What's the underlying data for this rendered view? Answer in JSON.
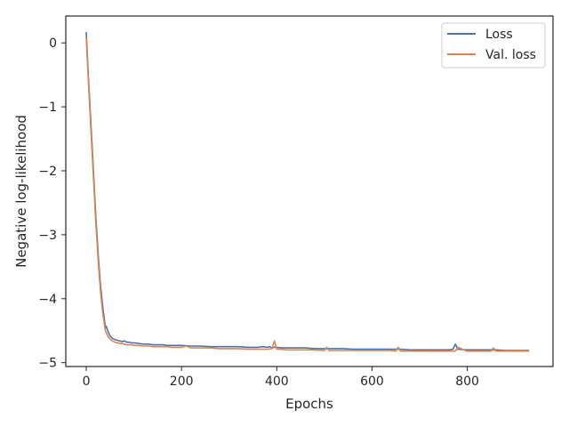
{
  "chart_data": {
    "type": "line",
    "title": "",
    "xlabel": "Epochs",
    "ylabel": "Negative log-likelihood",
    "xlim": [
      -43,
      980
    ],
    "ylim": [
      -5.06,
      0.42
    ],
    "xticks": [
      0,
      200,
      400,
      600,
      800
    ],
    "xtick_labels": [
      "0",
      "200",
      "400",
      "600",
      "800"
    ],
    "yticks": [
      0,
      -1,
      -2,
      -3,
      -4,
      -5
    ],
    "ytick_labels": [
      "0",
      "−1",
      "−2",
      "−3",
      "−4",
      "−5"
    ],
    "grid": false,
    "legend": {
      "position": "top-right"
    },
    "series": [
      {
        "name": "Loss",
        "color": "#4c72b0",
        "x": [
          0,
          5,
          10,
          15,
          20,
          25,
          30,
          35,
          40,
          42,
          45,
          50,
          55,
          60,
          65,
          70,
          75,
          80,
          85,
          90,
          95,
          100,
          110,
          120,
          130,
          140,
          150,
          160,
          170,
          180,
          190,
          200,
          220,
          240,
          260,
          280,
          300,
          320,
          340,
          360,
          370,
          380,
          385,
          390,
          395,
          400,
          410,
          420,
          440,
          460,
          480,
          500,
          520,
          540,
          560,
          580,
          600,
          620,
          640,
          660,
          680,
          700,
          720,
          740,
          760,
          770,
          775,
          780,
          800,
          820,
          840,
          860,
          880,
          900,
          920,
          930
        ],
        "y": [
          0.17,
          -0.6,
          -1.3,
          -2.0,
          -2.7,
          -3.3,
          -3.8,
          -4.15,
          -4.45,
          -4.43,
          -4.5,
          -4.58,
          -4.62,
          -4.64,
          -4.65,
          -4.66,
          -4.67,
          -4.66,
          -4.68,
          -4.68,
          -4.69,
          -4.69,
          -4.7,
          -4.71,
          -4.71,
          -4.72,
          -4.72,
          -4.72,
          -4.73,
          -4.73,
          -4.73,
          -4.73,
          -4.74,
          -4.74,
          -4.75,
          -4.75,
          -4.75,
          -4.75,
          -4.76,
          -4.76,
          -4.75,
          -4.76,
          -4.75,
          -4.77,
          -4.76,
          -4.76,
          -4.77,
          -4.77,
          -4.77,
          -4.77,
          -4.78,
          -4.78,
          -4.78,
          -4.78,
          -4.79,
          -4.79,
          -4.79,
          -4.79,
          -4.79,
          -4.79,
          -4.8,
          -4.8,
          -4.8,
          -4.8,
          -4.8,
          -4.79,
          -4.71,
          -4.79,
          -4.8,
          -4.8,
          -4.8,
          -4.8,
          -4.81,
          -4.81,
          -4.81,
          -4.81
        ]
      },
      {
        "name": "Val. loss",
        "color": "#dd8452",
        "x": [
          0,
          5,
          10,
          15,
          20,
          25,
          30,
          35,
          40,
          45,
          50,
          55,
          60,
          65,
          70,
          75,
          80,
          85,
          90,
          95,
          100,
          110,
          120,
          130,
          140,
          150,
          160,
          170,
          180,
          190,
          200,
          210,
          220,
          240,
          260,
          280,
          300,
          320,
          340,
          360,
          380,
          390,
          395,
          400,
          410,
          420,
          440,
          460,
          480,
          500,
          505,
          510,
          520,
          540,
          560,
          580,
          600,
          620,
          640,
          650,
          655,
          660,
          680,
          700,
          720,
          740,
          760,
          775,
          780,
          800,
          820,
          840,
          850,
          855,
          860,
          880,
          900,
          920,
          930
        ],
        "y": [
          0.08,
          -0.68,
          -1.4,
          -2.1,
          -2.8,
          -3.4,
          -3.9,
          -4.25,
          -4.5,
          -4.58,
          -4.63,
          -4.66,
          -4.68,
          -4.69,
          -4.7,
          -4.7,
          -4.71,
          -4.72,
          -4.72,
          -4.72,
          -4.73,
          -4.73,
          -4.74,
          -4.74,
          -4.75,
          -4.75,
          -4.75,
          -4.75,
          -4.76,
          -4.76,
          -4.76,
          -4.74,
          -4.77,
          -4.77,
          -4.77,
          -4.78,
          -4.78,
          -4.78,
          -4.79,
          -4.79,
          -4.79,
          -4.78,
          -4.66,
          -4.79,
          -4.79,
          -4.8,
          -4.8,
          -4.8,
          -4.8,
          -4.81,
          -4.76,
          -4.81,
          -4.81,
          -4.81,
          -4.81,
          -4.81,
          -4.81,
          -4.81,
          -4.81,
          -4.82,
          -4.76,
          -4.82,
          -4.82,
          -4.82,
          -4.82,
          -4.82,
          -4.82,
          -4.82,
          -4.76,
          -4.82,
          -4.82,
          -4.82,
          -4.82,
          -4.77,
          -4.82,
          -4.82,
          -4.82,
          -4.82,
          -4.82
        ]
      }
    ]
  }
}
